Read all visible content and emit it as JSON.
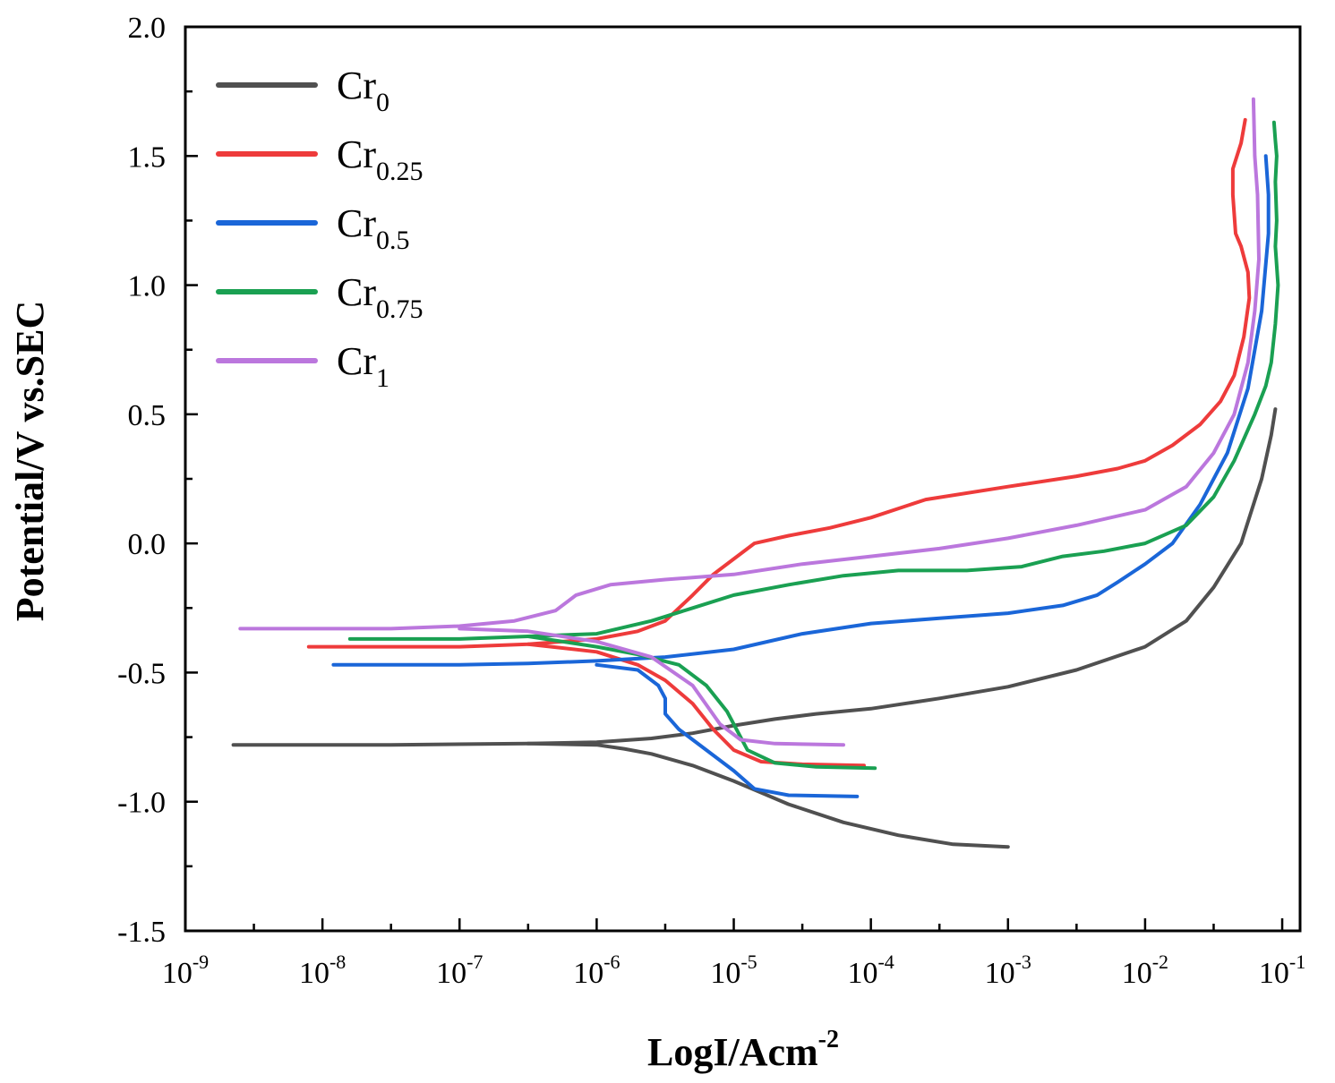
{
  "chart_data": {
    "type": "line",
    "title": "",
    "xlabel": {
      "base": "LogI/Acm",
      "sup": "-2"
    },
    "ylabel": "Potential/V vs.SEC",
    "x_scale": "log",
    "xlim": [
      1e-09,
      0.135
    ],
    "ylim": [
      -1.5,
      2.0
    ],
    "x_ticks": [
      {
        "value": 1e-09,
        "base": "10",
        "exp": "-9"
      },
      {
        "value": 1e-08,
        "base": "10",
        "exp": "-8"
      },
      {
        "value": 1e-07,
        "base": "10",
        "exp": "-7"
      },
      {
        "value": 1e-06,
        "base": "10",
        "exp": "-6"
      },
      {
        "value": 1e-05,
        "base": "10",
        "exp": "-5"
      },
      {
        "value": 0.0001,
        "base": "10",
        "exp": "-4"
      },
      {
        "value": 0.001,
        "base": "10",
        "exp": "-3"
      },
      {
        "value": 0.01,
        "base": "10",
        "exp": "-2"
      },
      {
        "value": 0.1,
        "base": "10",
        "exp": "-1"
      }
    ],
    "y_ticks": [
      {
        "value": -1.5,
        "label": "-1.5"
      },
      {
        "value": -1.0,
        "label": "-1.0"
      },
      {
        "value": -0.5,
        "label": "-0.5"
      },
      {
        "value": 0.0,
        "label": "0.0"
      },
      {
        "value": 0.5,
        "label": "0.5"
      },
      {
        "value": 1.0,
        "label": "1.0"
      },
      {
        "value": 1.5,
        "label": "1.5"
      },
      {
        "value": 2.0,
        "label": "2.0"
      }
    ],
    "grid": false,
    "legend_position": "top-left",
    "series": [
      {
        "name": "Cr0",
        "label_base": "Cr",
        "label_sub": "0",
        "color": "#505050",
        "points": [
          [
            -8.65,
            -0.78
          ],
          [
            -7.5,
            -0.78
          ],
          [
            -6.5,
            -0.775
          ],
          [
            -6.0,
            -0.77
          ],
          [
            -5.6,
            -0.755
          ],
          [
            -5.3,
            -0.735
          ],
          [
            -5.0,
            -0.705
          ],
          [
            -4.7,
            -0.68
          ],
          [
            -4.4,
            -0.66
          ],
          [
            -4.0,
            -0.64
          ],
          [
            -3.5,
            -0.6
          ],
          [
            -3.0,
            -0.555
          ],
          [
            -2.5,
            -0.49
          ],
          [
            -2.0,
            -0.4
          ],
          [
            -1.7,
            -0.3
          ],
          [
            -1.5,
            -0.17
          ],
          [
            -1.3,
            0.0
          ],
          [
            -1.15,
            0.25
          ],
          [
            -1.08,
            0.42
          ],
          [
            -1.05,
            0.52
          ]
        ],
        "branch": [
          [
            -6.5,
            -0.775
          ],
          [
            -6.0,
            -0.78
          ],
          [
            -5.8,
            -0.795
          ],
          [
            -5.6,
            -0.815
          ],
          [
            -5.3,
            -0.86
          ],
          [
            -5.0,
            -0.92
          ],
          [
            -4.6,
            -1.01
          ],
          [
            -4.2,
            -1.08
          ],
          [
            -3.8,
            -1.13
          ],
          [
            -3.4,
            -1.165
          ],
          [
            -3.0,
            -1.175
          ]
        ]
      },
      {
        "name": "Cr0.25",
        "label_base": "Cr",
        "label_sub": "0.25",
        "color": "#ee3b3b",
        "points": [
          [
            -8.1,
            -0.4
          ],
          [
            -7.5,
            -0.4
          ],
          [
            -7.0,
            -0.4
          ],
          [
            -6.5,
            -0.39
          ],
          [
            -6.0,
            -0.37
          ],
          [
            -5.7,
            -0.34
          ],
          [
            -5.5,
            -0.3
          ],
          [
            -5.4,
            -0.25
          ],
          [
            -5.3,
            -0.2
          ],
          [
            -5.15,
            -0.12
          ],
          [
            -5.0,
            -0.06
          ],
          [
            -4.85,
            0.0
          ],
          [
            -4.6,
            0.03
          ],
          [
            -4.3,
            0.06
          ],
          [
            -4.0,
            0.1
          ],
          [
            -3.6,
            0.17
          ],
          [
            -3.0,
            0.22
          ],
          [
            -2.5,
            0.26
          ],
          [
            -2.2,
            0.29
          ],
          [
            -2.0,
            0.32
          ],
          [
            -1.8,
            0.38
          ],
          [
            -1.6,
            0.46
          ],
          [
            -1.45,
            0.55
          ],
          [
            -1.35,
            0.65
          ],
          [
            -1.28,
            0.8
          ],
          [
            -1.24,
            0.95
          ],
          [
            -1.25,
            1.05
          ],
          [
            -1.3,
            1.15
          ],
          [
            -1.34,
            1.2
          ],
          [
            -1.36,
            1.35
          ],
          [
            -1.36,
            1.45
          ],
          [
            -1.3,
            1.55
          ],
          [
            -1.27,
            1.64
          ]
        ],
        "branch": [
          [
            -6.5,
            -0.39
          ],
          [
            -6.0,
            -0.42
          ],
          [
            -5.7,
            -0.47
          ],
          [
            -5.5,
            -0.53
          ],
          [
            -5.3,
            -0.62
          ],
          [
            -5.15,
            -0.72
          ],
          [
            -5.0,
            -0.8
          ],
          [
            -4.8,
            -0.845
          ],
          [
            -4.5,
            -0.855
          ],
          [
            -4.05,
            -0.86
          ]
        ]
      },
      {
        "name": "Cr0.5",
        "label_base": "Cr",
        "label_sub": "0.5",
        "color": "#1a66d8",
        "points": [
          [
            -7.92,
            -0.47
          ],
          [
            -7.0,
            -0.47
          ],
          [
            -6.5,
            -0.465
          ],
          [
            -6.0,
            -0.455
          ],
          [
            -5.5,
            -0.44
          ],
          [
            -5.0,
            -0.41
          ],
          [
            -4.5,
            -0.35
          ],
          [
            -4.0,
            -0.31
          ],
          [
            -3.5,
            -0.29
          ],
          [
            -3.0,
            -0.27
          ],
          [
            -2.6,
            -0.24
          ],
          [
            -2.35,
            -0.2
          ],
          [
            -2.2,
            -0.15
          ],
          [
            -2.0,
            -0.08
          ],
          [
            -1.8,
            0.0
          ],
          [
            -1.6,
            0.15
          ],
          [
            -1.4,
            0.35
          ],
          [
            -1.25,
            0.6
          ],
          [
            -1.15,
            0.9
          ],
          [
            -1.1,
            1.2
          ],
          [
            -1.1,
            1.35
          ],
          [
            -1.12,
            1.5
          ]
        ],
        "branch": [
          [
            -6.0,
            -0.47
          ],
          [
            -5.7,
            -0.49
          ],
          [
            -5.55,
            -0.55
          ],
          [
            -5.5,
            -0.6
          ],
          [
            -5.5,
            -0.66
          ],
          [
            -5.4,
            -0.72
          ],
          [
            -5.2,
            -0.8
          ],
          [
            -5.0,
            -0.88
          ],
          [
            -4.85,
            -0.95
          ],
          [
            -4.6,
            -0.975
          ],
          [
            -4.1,
            -0.98
          ]
        ]
      },
      {
        "name": "Cr0.75",
        "label_base": "Cr",
        "label_sub": "0.75",
        "color": "#1aa052",
        "points": [
          [
            -7.8,
            -0.37
          ],
          [
            -7.0,
            -0.37
          ],
          [
            -6.5,
            -0.36
          ],
          [
            -6.0,
            -0.35
          ],
          [
            -5.6,
            -0.3
          ],
          [
            -5.3,
            -0.25
          ],
          [
            -5.0,
            -0.2
          ],
          [
            -4.6,
            -0.16
          ],
          [
            -4.2,
            -0.125
          ],
          [
            -3.8,
            -0.105
          ],
          [
            -3.3,
            -0.105
          ],
          [
            -2.9,
            -0.09
          ],
          [
            -2.6,
            -0.05
          ],
          [
            -2.3,
            -0.03
          ],
          [
            -2.0,
            0.0
          ],
          [
            -1.7,
            0.07
          ],
          [
            -1.5,
            0.18
          ],
          [
            -1.35,
            0.32
          ],
          [
            -1.2,
            0.5
          ],
          [
            -1.12,
            0.61
          ],
          [
            -1.08,
            0.7
          ],
          [
            -1.05,
            0.85
          ],
          [
            -1.03,
            1.0
          ],
          [
            -1.05,
            1.15
          ],
          [
            -1.04,
            1.25
          ],
          [
            -1.05,
            1.4
          ],
          [
            -1.04,
            1.5
          ],
          [
            -1.05,
            1.56
          ],
          [
            -1.06,
            1.63
          ]
        ],
        "branch": [
          [
            -6.5,
            -0.36
          ],
          [
            -6.0,
            -0.4
          ],
          [
            -5.7,
            -0.43
          ],
          [
            -5.4,
            -0.47
          ],
          [
            -5.2,
            -0.55
          ],
          [
            -5.05,
            -0.65
          ],
          [
            -4.98,
            -0.72
          ],
          [
            -4.9,
            -0.8
          ],
          [
            -4.7,
            -0.85
          ],
          [
            -4.4,
            -0.865
          ],
          [
            -3.97,
            -0.87
          ]
        ]
      },
      {
        "name": "Cr1",
        "label_base": "Cr",
        "label_sub": "1",
        "color": "#bb77dd",
        "points": [
          [
            -8.6,
            -0.33
          ],
          [
            -8.0,
            -0.33
          ],
          [
            -7.5,
            -0.33
          ],
          [
            -7.0,
            -0.32
          ],
          [
            -6.6,
            -0.3
          ],
          [
            -6.3,
            -0.26
          ],
          [
            -6.15,
            -0.2
          ],
          [
            -5.9,
            -0.16
          ],
          [
            -5.5,
            -0.14
          ],
          [
            -5.0,
            -0.12
          ],
          [
            -4.5,
            -0.08
          ],
          [
            -4.0,
            -0.05
          ],
          [
            -3.5,
            -0.02
          ],
          [
            -3.0,
            0.02
          ],
          [
            -2.5,
            0.07
          ],
          [
            -2.0,
            0.13
          ],
          [
            -1.7,
            0.22
          ],
          [
            -1.5,
            0.35
          ],
          [
            -1.35,
            0.5
          ],
          [
            -1.25,
            0.7
          ],
          [
            -1.2,
            0.9
          ],
          [
            -1.17,
            1.1
          ],
          [
            -1.18,
            1.35
          ],
          [
            -1.2,
            1.5
          ],
          [
            -1.21,
            1.72
          ]
        ],
        "branch": [
          [
            -7.0,
            -0.33
          ],
          [
            -6.5,
            -0.34
          ],
          [
            -6.0,
            -0.38
          ],
          [
            -5.6,
            -0.44
          ],
          [
            -5.3,
            -0.55
          ],
          [
            -5.1,
            -0.7
          ],
          [
            -4.95,
            -0.76
          ],
          [
            -4.7,
            -0.775
          ],
          [
            -4.2,
            -0.78
          ]
        ]
      }
    ]
  }
}
